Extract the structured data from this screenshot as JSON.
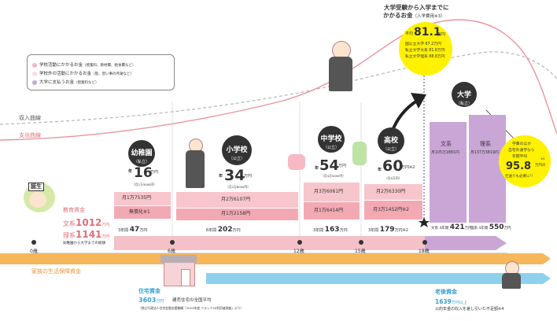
{
  "title": {
    "line1": "大学受験から入学までに",
    "line2_a": "かかるお金",
    "line2_b": "（入学費用※3）"
  },
  "exam_cost": {
    "avg_label": "平均",
    "avg_value": "81.1",
    "avg_unit": "万円",
    "row1": "国公立大学 67.2万円",
    "row2": "私立大学文系 81.8万円",
    "row3": "私立大学理系 88.8万円"
  },
  "legend": {
    "items": [
      {
        "label": "学校活動にかかるお金",
        "note": "（授業料、教材費、給食費など）",
        "color": "#f5b8c0"
      },
      {
        "label": "学校外の活動にかかるお金",
        "note": "（塾、習い事の月謝など）",
        "color": "#f9dde0"
      },
      {
        "label": "大学に支払うお金",
        "note": "（授業料など）",
        "color": "#c9a6d6"
      }
    ]
  },
  "curves": {
    "income_label": "収入曲線",
    "expense_label": "支出曲線"
  },
  "birth": {
    "label": "誕生"
  },
  "education": {
    "title": "教育資金",
    "bunkei_label": "文系",
    "bunkei_value": "1012",
    "bunkei_unit": "万円",
    "rikei_label": "理系",
    "rikei_value": "1141",
    "rikei_unit": "万円",
    "note": "幼稚園から大学までの総額"
  },
  "kindergarten": {
    "name": "幼稚園",
    "sub": "（私立）",
    "year_label": "年",
    "value": "16",
    "unit": "万円",
    "sub_total": "（月1万3000円）",
    "monthly": "月1万7535円",
    "free": "無償化※1",
    "total_label": "3年間",
    "total_value": "47",
    "total_unit": "万円"
  },
  "elementary": {
    "name": "小学校",
    "sub": "（公立）",
    "year_label": "年",
    "value": "34",
    "unit": "万円",
    "sub_total": "（月2万8000円）",
    "monthly1": "月2万6107円",
    "monthly2": "月1万2158円",
    "total_label": "6年間",
    "total_value": "202",
    "total_unit": "万円"
  },
  "junior_high": {
    "name": "中学校",
    "sub": "（公立）",
    "year_label": "年",
    "value": "54",
    "unit": "万円",
    "sub_total": "（月4万5000円）",
    "monthly1": "月3万6061円",
    "monthly2": "月1万6414円",
    "total_label": "3年間",
    "total_value": "163",
    "total_unit": "万円"
  },
  "high_school": {
    "name": "高校",
    "sub": "（公立）",
    "year_label": "年",
    "value": "60",
    "unit": "万円※2",
    "sub_total": "（月5万円）",
    "monthly1": "月2万6330円",
    "monthly2": "月3万1452円※2",
    "total_label": "3年間",
    "total_value": "179",
    "total_unit": "万円※2"
  },
  "university": {
    "name": "大学",
    "sub": "（私立）",
    "bunkei": "文系",
    "bunkei_monthly": "月105万1881円",
    "rikei": "理系",
    "rikei_monthly": "月137万3819円",
    "bunkei_total_label": "文系 4年間",
    "bunkei_total_value": "421",
    "bunkei_total_unit": "万円",
    "rikei_total_label": "理系 4年間",
    "rikei_total_value": "550",
    "rikei_total_unit": "万円"
  },
  "living": {
    "note1": "学費のほか",
    "note2": "自宅外通学なら",
    "note3": "年間平均",
    "value": "95.8",
    "unit": "万円の",
    "note4": "仕送りも必要に!!",
    "foot": "※5"
  },
  "ages": [
    "0歳",
    "6歳",
    "12歳",
    "15歳",
    "18歳"
  ],
  "family_fund": {
    "label": "家族の生活保障資金"
  },
  "housing": {
    "title": "住宅資金",
    "value": "3603",
    "unit": "万円",
    "desc": "建売住宅の全国平均",
    "source": "（独立行政法人住宅金融支援機構「2023年度 フラット35利用者調査」より）"
  },
  "retirement": {
    "title": "老後資金",
    "value": "1639",
    "unit": "万円以上",
    "desc": "公的年金の収入を差し引いた不足額※4"
  }
}
